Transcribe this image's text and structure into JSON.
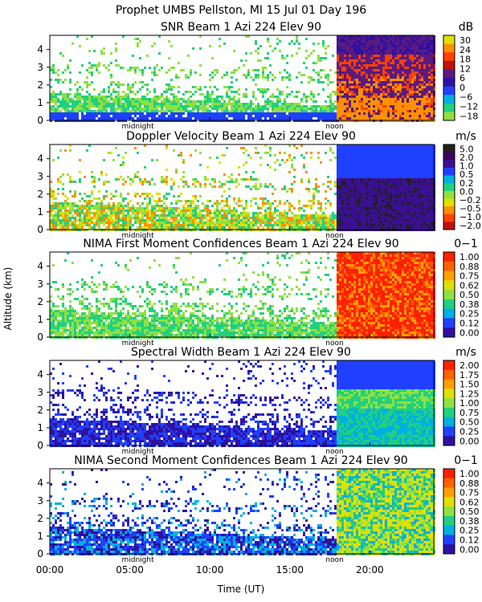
{
  "header": {
    "line1": "Prophet  UMBS Pellston, MI  15 Jul 01 Day 196"
  },
  "xaxis": {
    "label": "Time (UT)",
    "range": [
      0,
      24
    ],
    "ticks": [
      {
        "value": 0,
        "label": "00:00"
      },
      {
        "value": 5,
        "label": "05:00"
      },
      {
        "value": 10,
        "label": "10:00"
      },
      {
        "value": 15,
        "label": "15:00"
      },
      {
        "value": 20,
        "label": "20:00"
      }
    ],
    "markers": [
      {
        "value": 5.5,
        "label": "midnight"
      },
      {
        "value": 17.8,
        "label": "noon"
      }
    ]
  },
  "yaxis": {
    "label": "Altitude (km)",
    "range": [
      0,
      4.8
    ],
    "ticks": [
      "0",
      "1",
      "2",
      "3",
      "4"
    ]
  },
  "chart_data": [
    {
      "type": "heatmap",
      "title": "SNR Beam 1 Azi 224 Elev 90",
      "unit": "dB",
      "colorbar": [
        "30",
        "24",
        "18",
        "12",
        "6",
        "0",
        "−6",
        "−12",
        "−18"
      ],
      "colors": [
        "#e0e000",
        "#ff9000",
        "#ff4000",
        "#c01010",
        "#5a1a80",
        "#3010a0",
        "#2040ff",
        "#00b0e0",
        "#20d080",
        "#90e040"
      ]
    },
    {
      "type": "heatmap",
      "title": "Doppler Velocity Beam 1 Azi 224 Elev 90",
      "unit": "m/s",
      "colorbar": [
        "5.0",
        "2.0",
        "1.0",
        "0.5",
        "0.2",
        "0.0",
        "−0.2",
        "−0.5",
        "−1.0",
        "−2.0"
      ],
      "colors": [
        "#202020",
        "#400060",
        "#3a1090",
        "#2040ff",
        "#00b0e0",
        "#20d080",
        "#90e040",
        "#e0e000",
        "#ff9000",
        "#ff4000",
        "#c01010"
      ]
    },
    {
      "type": "heatmap",
      "title": "NIMA First Moment Confidences Beam 1 Azi 224 Elev 90",
      "unit": "0−1",
      "colorbar": [
        "1.00",
        "0.88",
        "0.75",
        "0.62",
        "0.50",
        "0.38",
        "0.25",
        "0.12",
        "0.00"
      ],
      "colors": [
        "#ff2000",
        "#ff6000",
        "#ffa000",
        "#e0e000",
        "#90e040",
        "#20d080",
        "#00b0e0",
        "#2040ff",
        "#3010a0"
      ]
    },
    {
      "type": "heatmap",
      "title": "Spectral Width Beam 1 Azi 224 Elev 90",
      "unit": "m/s",
      "colorbar": [
        "2.00",
        "1.75",
        "1.50",
        "1.25",
        "1.00",
        "0.75",
        "0.50",
        "0.25",
        "0.00"
      ],
      "colors": [
        "#ff2000",
        "#ff6000",
        "#ffa000",
        "#e0e000",
        "#90e040",
        "#20d080",
        "#00b0e0",
        "#2040ff",
        "#3010a0"
      ]
    },
    {
      "type": "heatmap",
      "title": "NIMA Second Moment Confidences Beam 1 Azi 224 Elev 90",
      "unit": "0−1",
      "colorbar": [
        "1.00",
        "0.88",
        "0.75",
        "0.62",
        "0.50",
        "0.38",
        "0.25",
        "0.12",
        "0.00"
      ],
      "colors": [
        "#ff2000",
        "#ff6000",
        "#ffa000",
        "#e0e000",
        "#90e040",
        "#20d080",
        "#00b0e0",
        "#2040ff",
        "#3010a0"
      ]
    }
  ]
}
